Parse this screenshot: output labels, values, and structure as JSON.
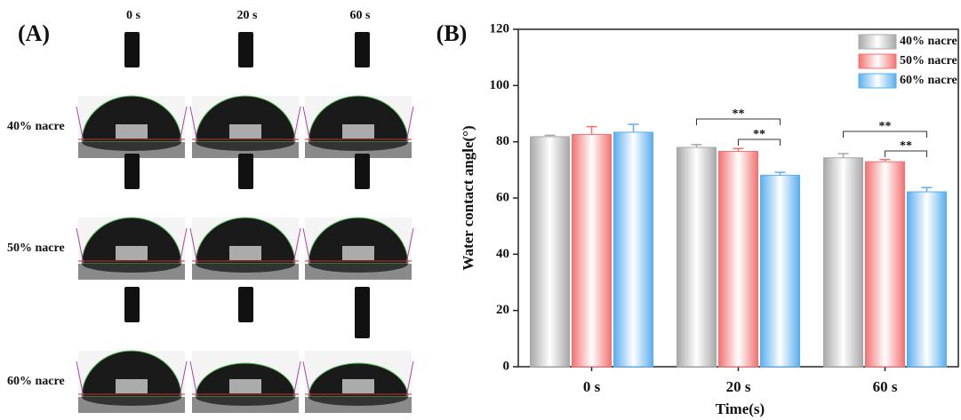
{
  "panel_a": {
    "label": "(A)",
    "times": [
      "0 s",
      "20 s",
      "60 s"
    ],
    "rows": [
      "40% nacre",
      "50% nacre",
      "60% nacre"
    ]
  },
  "panel_b": {
    "label": "(B)"
  },
  "chart_data": {
    "type": "bar",
    "categories": [
      "0 s",
      "20 s",
      "60 s"
    ],
    "series": [
      {
        "name": "40% nacre",
        "color": "#a8a8a8",
        "values": [
          81.8,
          78,
          74.3
        ],
        "errors": [
          0.5,
          1,
          1.5
        ]
      },
      {
        "name": "50% nacre",
        "color": "#f27272",
        "values": [
          82.6,
          76.6,
          72.9
        ],
        "errors": [
          2.8,
          1,
          0.8
        ]
      },
      {
        "name": "60% nacre",
        "color": "#5aaeee",
        "values": [
          83.4,
          68.1,
          62.2
        ],
        "errors": [
          2.8,
          1,
          1.5
        ]
      }
    ],
    "xlabel": "Time(s)",
    "ylabel": "Water contact angle(°)",
    "ylim": [
      0,
      120
    ],
    "yticks": [
      0,
      20,
      40,
      60,
      80,
      100,
      120
    ],
    "legend": "upper right",
    "annotations": [
      "**",
      "**",
      "**",
      "**"
    ]
  }
}
